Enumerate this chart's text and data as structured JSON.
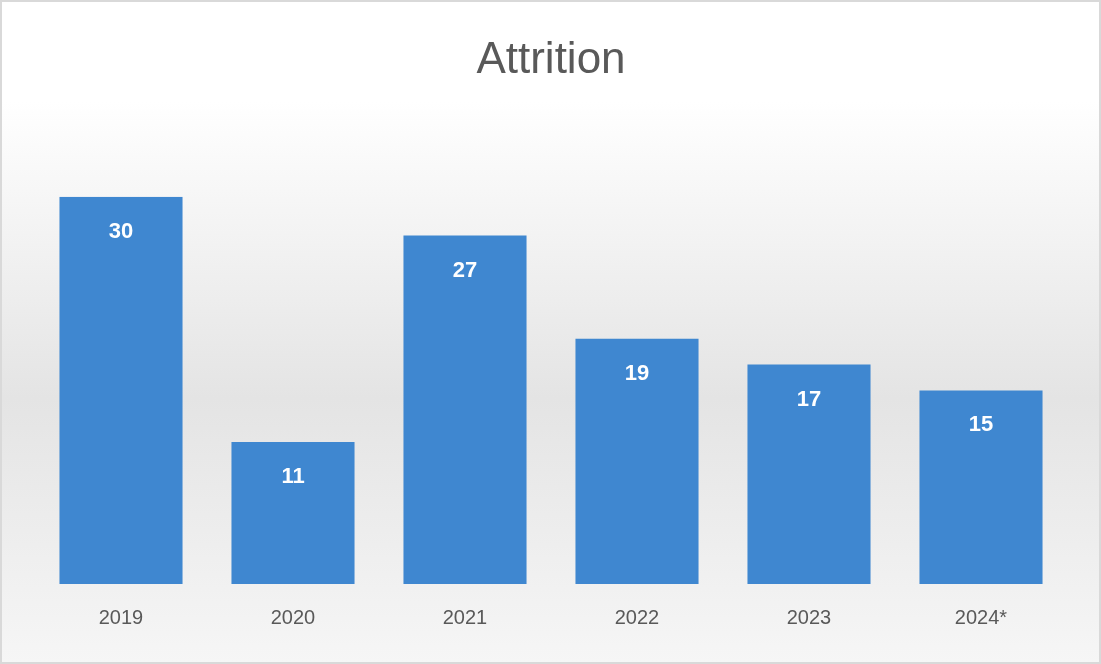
{
  "chart_data": {
    "type": "bar",
    "title": "Attrition",
    "categories": [
      "2019",
      "2020",
      "2021",
      "2022",
      "2023",
      "2024*"
    ],
    "values": [
      30,
      11,
      27,
      19,
      17,
      15
    ],
    "color": "#3f87d0",
    "data_labels": true,
    "grid": false,
    "legend": false
  }
}
